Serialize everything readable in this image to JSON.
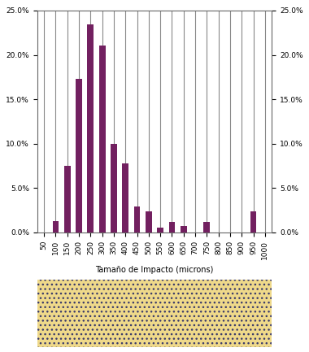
{
  "chart_data": {
    "type": "bar",
    "x_label": "Tamaño de Impacto (microns)",
    "categories": [
      "50",
      "100",
      "150",
      "200",
      "250",
      "300",
      "350",
      "400",
      "450",
      "500",
      "550",
      "600",
      "650",
      "700",
      "750",
      "800",
      "850",
      "900",
      "950",
      "1000"
    ],
    "values": [
      0,
      1.3,
      7.5,
      17.3,
      23.4,
      21.1,
      10.0,
      7.8,
      2.9,
      2.4,
      0.5,
      1.2,
      0.7,
      0,
      1.2,
      0,
      0,
      0,
      2.4,
      0
    ],
    "color": "#722060",
    "ylim": [
      0,
      25
    ],
    "yticks": [
      {
        "value": 0,
        "label": "0.0%"
      },
      {
        "value": 5,
        "label": "5.0%"
      },
      {
        "value": 10,
        "label": "10.0%"
      },
      {
        "value": 15,
        "label": "15.0%"
      },
      {
        "value": 20,
        "label": "20.0%"
      },
      {
        "value": 25,
        "label": "25.0%"
      }
    ],
    "grid": true
  }
}
